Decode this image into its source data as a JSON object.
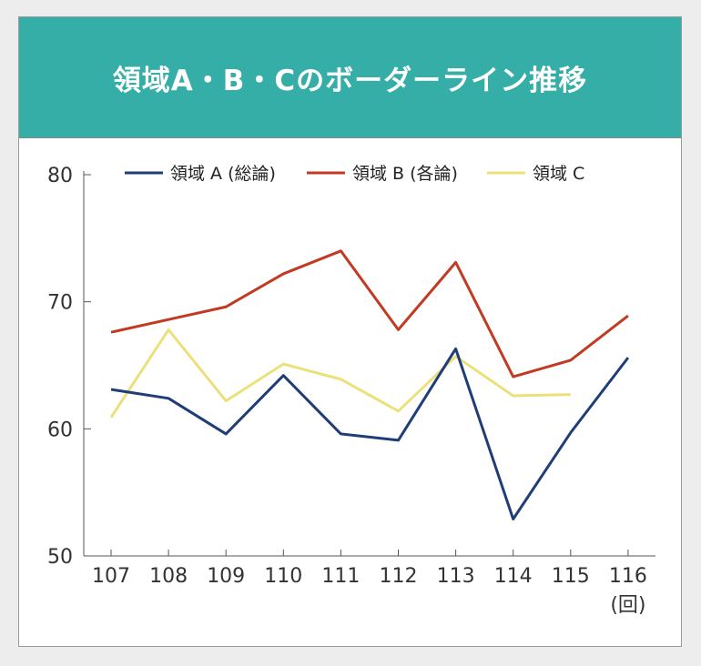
{
  "chart_data": {
    "type": "line",
    "title": "領域A・B・Cのボーダーライン推移",
    "x": [
      "107",
      "108",
      "109",
      "110",
      "111",
      "112",
      "113",
      "114",
      "115",
      "116"
    ],
    "x_unit": "(回)",
    "ylim": [
      50,
      80
    ],
    "yticks": [
      "50",
      "60",
      "70",
      "80"
    ],
    "grid": false,
    "legend_position": "top",
    "series": [
      {
        "name": "領域 A (総論)",
        "color": "#1f3d78",
        "values": [
          63.1,
          62.4,
          59.6,
          64.2,
          59.6,
          59.1,
          66.3,
          52.9,
          59.7,
          65.6
        ]
      },
      {
        "name": "領域 B (各論)",
        "color": "#c23a22",
        "values": [
          67.6,
          68.6,
          69.6,
          72.2,
          74.0,
          67.8,
          73.1,
          64.1,
          65.4,
          68.9
        ]
      },
      {
        "name": "領域 C",
        "color": "#ece07a",
        "values": [
          60.9,
          67.8,
          62.2,
          65.1,
          63.9,
          61.4,
          65.7,
          62.6,
          62.7,
          null
        ]
      }
    ]
  }
}
